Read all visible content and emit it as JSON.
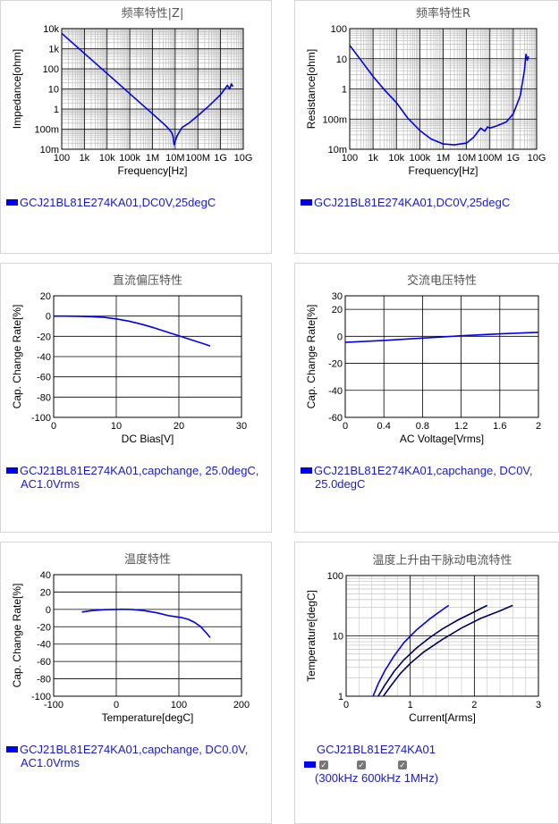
{
  "charts": [
    {
      "id": "c1",
      "panel": "p1",
      "title": "频率特性|Z|",
      "xlabel": "Frequency[Hz]",
      "ylabel": "Impedance[ohm]",
      "xscale": "log",
      "yscale": "log",
      "xlim": [
        100,
        10000000000
      ],
      "ylim": [
        0.01,
        10000
      ],
      "xticks": [
        [
          100,
          "100"
        ],
        [
          1000,
          "1k"
        ],
        [
          10000,
          "10k"
        ],
        [
          100000,
          "100k"
        ],
        [
          1000000,
          "1M"
        ],
        [
          10000000,
          "10M"
        ],
        [
          100000000,
          "100M"
        ],
        [
          1000000000,
          "1G"
        ],
        [
          10000000000,
          "10G"
        ]
      ],
      "yticks": [
        [
          0.01,
          "10m"
        ],
        [
          0.1,
          "100m"
        ],
        [
          1,
          "1"
        ],
        [
          10,
          "10"
        ],
        [
          100,
          "100"
        ],
        [
          1000,
          "1k"
        ],
        [
          10000,
          "10k"
        ]
      ],
      "series": [
        {
          "color": "#0000ee",
          "x": [
            100,
            1000,
            10000,
            100000,
            1000000,
            3000000,
            5000000,
            7000000,
            8000000,
            9000000,
            10000000,
            12000000,
            15000000,
            20000000,
            40000000,
            100000000,
            300000000,
            1000000000,
            2000000000,
            2500000000,
            3000000000,
            3500000000
          ],
          "y": [
            5800,
            580,
            58,
            5.8,
            0.58,
            0.19,
            0.11,
            0.068,
            0.045,
            0.017,
            0.025,
            0.045,
            0.07,
            0.12,
            0.2,
            0.47,
            1.4,
            5.2,
            15,
            10,
            18,
            13
          ]
        }
      ]
    },
    {
      "id": "c2",
      "panel": "p2",
      "title": "频率特性R",
      "xlabel": "Frequency[Hz]",
      "ylabel": "Resistance[ohm]",
      "xscale": "log",
      "yscale": "log",
      "xlim": [
        100,
        10000000000
      ],
      "ylim": [
        0.01,
        100
      ],
      "xticks": [
        [
          100,
          "100"
        ],
        [
          1000,
          "1k"
        ],
        [
          10000,
          "10k"
        ],
        [
          100000,
          "100k"
        ],
        [
          1000000,
          "1M"
        ],
        [
          10000000,
          "10M"
        ],
        [
          100000000,
          "100M"
        ],
        [
          1000000000,
          "1G"
        ],
        [
          10000000000,
          "10G"
        ]
      ],
      "yticks": [
        [
          0.01,
          "10m"
        ],
        [
          0.1,
          "100m"
        ],
        [
          1,
          "1"
        ],
        [
          10,
          "10"
        ],
        [
          100,
          "100"
        ]
      ],
      "series": [
        {
          "color": "#0000ee",
          "x": [
            100,
            300,
            1000,
            3000,
            10000,
            30000,
            100000,
            300000,
            1000000,
            3000000,
            10000000,
            20000000,
            40000000,
            60000000,
            80000000,
            100000000,
            200000000,
            500000000,
            1000000000,
            2000000000,
            3000000000,
            3500000000,
            4000000000,
            4500000000
          ],
          "y": [
            28,
            9,
            2.6,
            0.95,
            0.35,
            0.11,
            0.042,
            0.022,
            0.015,
            0.014,
            0.016,
            0.025,
            0.05,
            0.04,
            0.055,
            0.05,
            0.06,
            0.08,
            0.15,
            0.6,
            4,
            14,
            9,
            12
          ]
        }
      ]
    },
    {
      "id": "c3",
      "panel": "p3",
      "title": "直流偏压特性",
      "xlabel": "DC Bias[V]",
      "ylabel": "Cap. Change Rate[%]",
      "xscale": "linear",
      "yscale": "linear",
      "xlim": [
        0,
        30
      ],
      "ylim": [
        -100,
        20
      ],
      "xticks": [
        [
          0,
          "0"
        ],
        [
          10,
          "10"
        ],
        [
          20,
          "20"
        ],
        [
          30,
          "30"
        ]
      ],
      "yticks": [
        [
          20,
          "20"
        ],
        [
          0,
          "0"
        ],
        [
          -20,
          "-20"
        ],
        [
          -40,
          "-40"
        ],
        [
          -60,
          "-60"
        ],
        [
          -80,
          "-80"
        ],
        [
          -100,
          "-100"
        ]
      ],
      "series": [
        {
          "color": "#0000ee",
          "x": [
            0,
            2,
            4,
            6,
            8,
            10,
            12,
            14,
            16,
            18,
            20,
            22,
            24,
            25
          ],
          "y": [
            0,
            0,
            -0.2,
            -0.6,
            -1.3,
            -2.8,
            -5,
            -8,
            -11.5,
            -15.5,
            -19.5,
            -23.5,
            -27.5,
            -29.5
          ]
        }
      ]
    },
    {
      "id": "c4",
      "panel": "p4",
      "title": "交流电压特性",
      "xlabel": "AC Voltage[Vrms]",
      "ylabel": "Cap. Change Rate[%]",
      "xscale": "linear",
      "yscale": "linear",
      "xlim": [
        0,
        2
      ],
      "ylim": [
        -60,
        30
      ],
      "xticks": [
        [
          0,
          "0"
        ],
        [
          0.4,
          "0.4"
        ],
        [
          0.8,
          "0.8"
        ],
        [
          1.2,
          "1.2"
        ],
        [
          1.6,
          "1.6"
        ],
        [
          2,
          "2"
        ]
      ],
      "yticks": [
        [
          30,
          "30"
        ],
        [
          20,
          "20"
        ],
        [
          0,
          "0"
        ],
        [
          -20,
          "-20"
        ],
        [
          -40,
          "-40"
        ],
        [
          -60,
          "-60"
        ]
      ],
      "series": [
        {
          "color": "#0000ee",
          "x": [
            0,
            0.4,
            0.8,
            1.0,
            1.2,
            1.6,
            2.0
          ],
          "y": [
            -4.5,
            -3,
            -1.3,
            -0.5,
            0.4,
            1.8,
            3
          ]
        }
      ]
    },
    {
      "id": "c5",
      "panel": "p5",
      "title": "温度特性",
      "xlabel": "Temperature[degC]",
      "ylabel": "Cap. Change Rate[%]",
      "xscale": "linear",
      "yscale": "linear",
      "xlim": [
        -100,
        200
      ],
      "ylim": [
        -100,
        40
      ],
      "xticks": [
        [
          -100,
          "-100"
        ],
        [
          0,
          "0"
        ],
        [
          100,
          "100"
        ],
        [
          200,
          "200"
        ]
      ],
      "yticks": [
        [
          40,
          "40"
        ],
        [
          20,
          "20"
        ],
        [
          0,
          "0"
        ],
        [
          -20,
          "-20"
        ],
        [
          -40,
          "-40"
        ],
        [
          -60,
          "-60"
        ],
        [
          -80,
          "-80"
        ],
        [
          -100,
          "-100"
        ]
      ],
      "series": [
        {
          "color": "#0000ee",
          "x": [
            -55,
            -40,
            -20,
            0,
            10,
            25,
            45,
            65,
            85,
            105,
            115,
            125,
            135,
            145,
            150
          ],
          "y": [
            -3,
            -1.5,
            -0.4,
            0,
            0.2,
            0,
            -1.5,
            -4,
            -7.5,
            -9.5,
            -11.5,
            -15,
            -20,
            -28,
            -32.5
          ]
        }
      ]
    },
    {
      "id": "c6",
      "panel": "p6",
      "title": "温度上升由干脉动电流特性",
      "xlabel": "Current[Arms]",
      "ylabel": "Temperature[degC]",
      "xscale": "linear",
      "yscale": "log",
      "xlim": [
        0,
        3
      ],
      "ylim": [
        1,
        100
      ],
      "xticks": [
        [
          0,
          "0"
        ],
        [
          1,
          "1"
        ],
        [
          2,
          "2"
        ],
        [
          3,
          "3"
        ]
      ],
      "yticks": [
        [
          1,
          "1"
        ],
        [
          10,
          "10"
        ],
        [
          100,
          "100"
        ]
      ],
      "series": [
        {
          "color": "#0000ee",
          "x": [
            0.42,
            0.5,
            0.6,
            0.75,
            0.9,
            1.1,
            1.3,
            1.5,
            1.6
          ],
          "y": [
            1,
            1.6,
            2.6,
            4.7,
            7.7,
            12.6,
            19,
            27,
            32
          ]
        },
        {
          "color": "#000066",
          "x": [
            0.5,
            0.6,
            0.75,
            0.9,
            1.1,
            1.3,
            1.5,
            1.75,
            2.0,
            2.2
          ],
          "y": [
            1,
            1.5,
            2.6,
            4,
            6.3,
            9.3,
            13,
            18.5,
            25,
            32
          ]
        },
        {
          "color": "#000066",
          "x": [
            0.58,
            0.7,
            0.85,
            1.0,
            1.2,
            1.5,
            1.8,
            2.1,
            2.4,
            2.6
          ],
          "y": [
            1,
            1.5,
            2.4,
            3.5,
            5.3,
            8.7,
            13.5,
            19.5,
            26,
            32
          ]
        }
      ]
    }
  ],
  "legends": {
    "l1": "GCJ21BL81E274KA01,DC0V,25degC",
    "l2": "GCJ21BL81E274KA01,DC0V,25degC",
    "l3": "GCJ21BL81E274KA01,capchange, 25.0degC, AC1.0Vrms",
    "l4": "GCJ21BL81E274KA01,capchange, DC0V, 25.0degC",
    "l5": "GCJ21BL81E274KA01,capchange, DC0.0V, AC1.0Vrms",
    "l6": "GCJ21BL81E274KA01"
  },
  "checkboxes": [
    "300kHz",
    "600kHz",
    "1MHz"
  ],
  "check_glyph": "✓",
  "paren_open": "(",
  "paren_close": ")",
  "colors": {
    "series": "#0000ee",
    "legend_text": "#1a1acc",
    "panel_border": "#d6d6d6"
  }
}
